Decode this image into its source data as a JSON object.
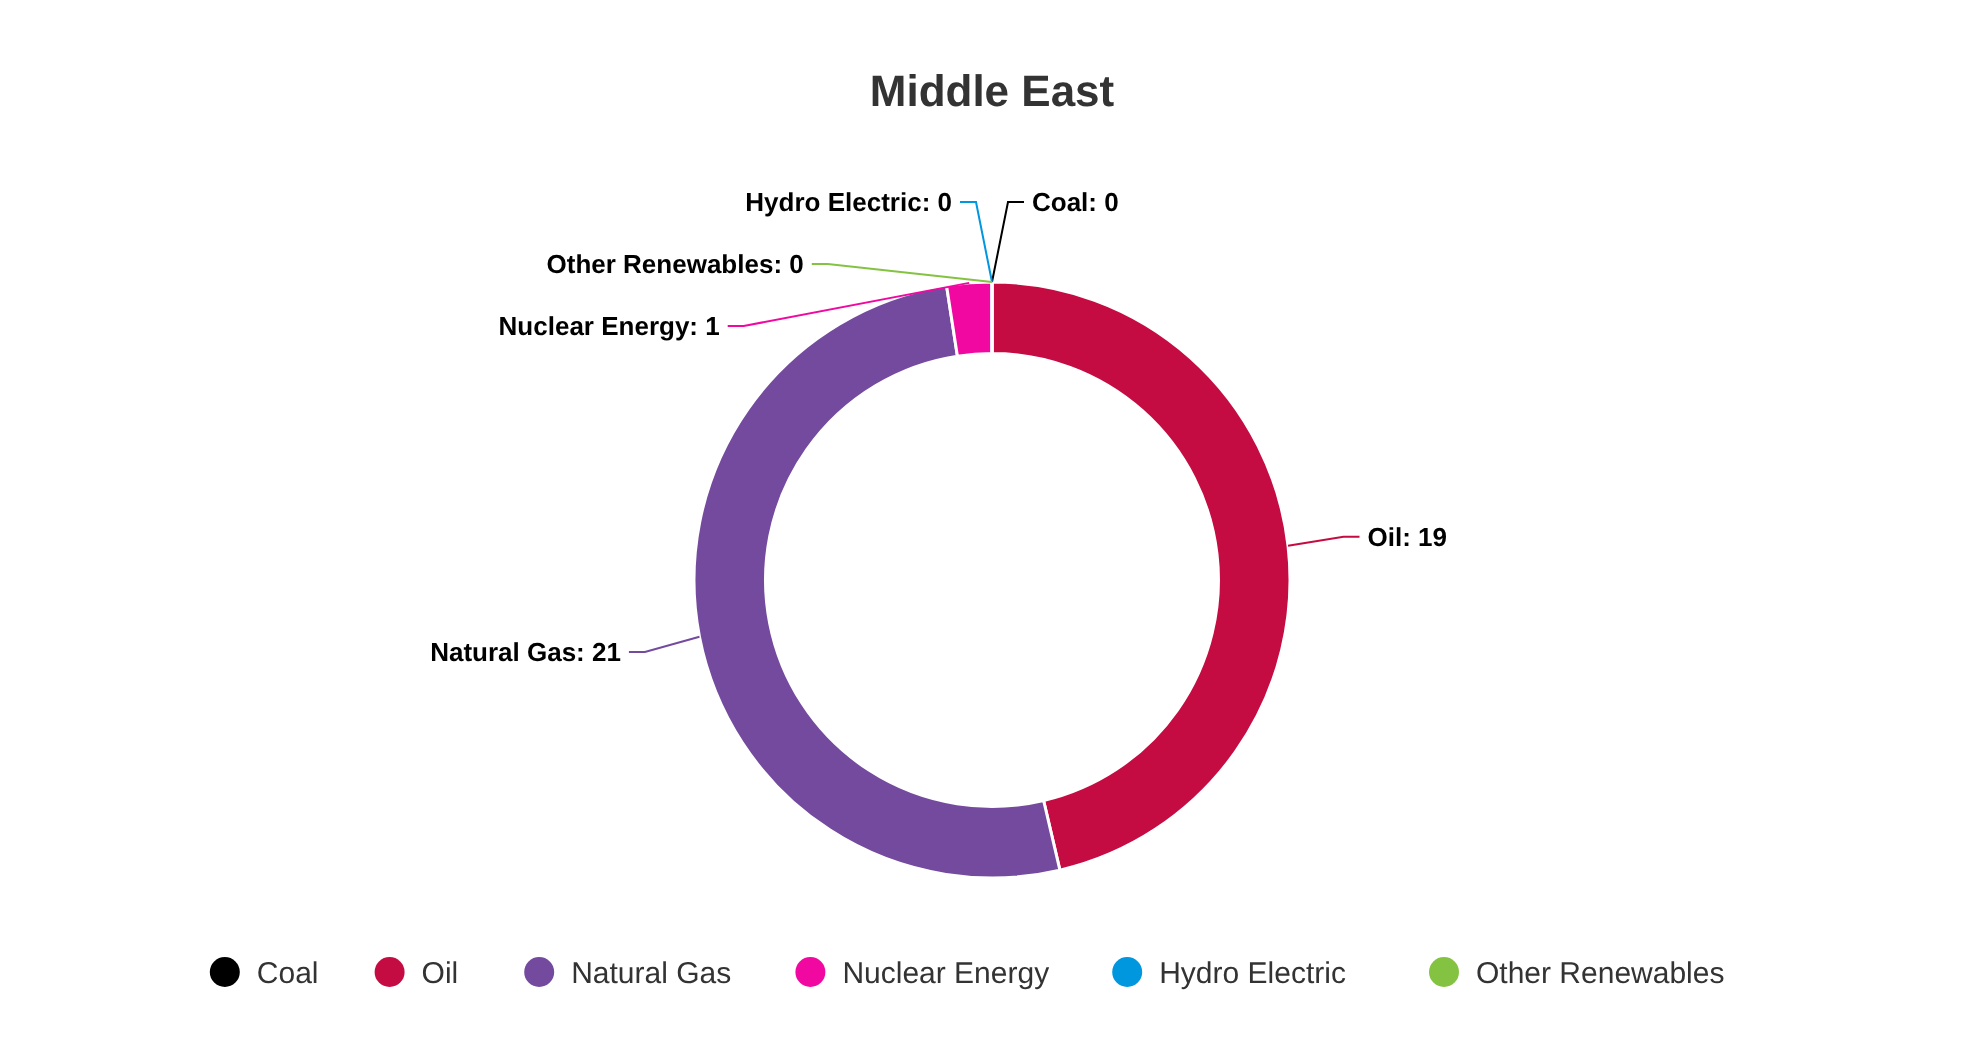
{
  "chart_data": {
    "type": "donut",
    "title": "Middle East",
    "categories": [
      "Coal",
      "Oil",
      "Natural Gas",
      "Nuclear Energy",
      "Hydro Electric",
      "Other Renewables"
    ],
    "values": [
      0,
      19,
      21,
      1,
      0,
      0
    ],
    "colors": [
      "#000000",
      "#c40c42",
      "#744a9e",
      "#f008a0",
      "#0097de",
      "#84c341"
    ],
    "value_labels": [
      "Coal: 0",
      "Oil: 19",
      "Natural Gas: 21",
      "Nuclear Energy: 1",
      "Hydro Electric: 0",
      "Other Renewables: 0"
    ],
    "legend": "bottom"
  }
}
